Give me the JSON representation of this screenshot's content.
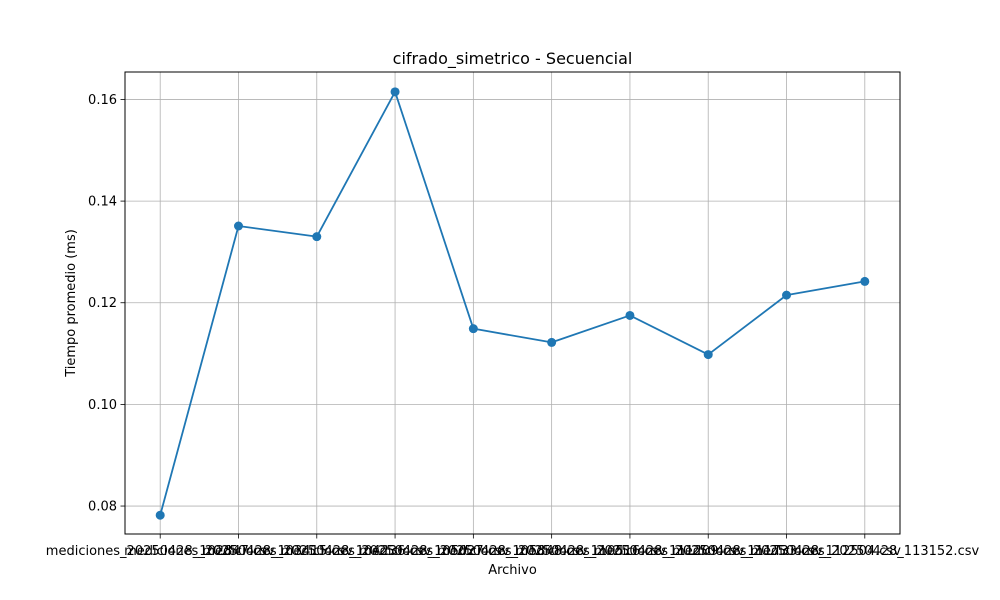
{
  "chart_data": {
    "type": "line",
    "title": "cifrado_simetrico - Secuencial",
    "xlabel": "Archivo",
    "ylabel": "Tiempo promedio (ms)",
    "categories": [
      "mediciones_20250428_102847.csv",
      "mediciones_20250428_103415.csv",
      "mediciones_20250428_104236.csv",
      "mediciones_20250428_105027.csv",
      "mediciones_20250428_105848.csv",
      "mediciones_20250428_110516.csv",
      "mediciones_20250428_111209.csv",
      "mediciones_20250428_111733.csv",
      "mediciones_20250428_112504.csv",
      "mediciones_20250428_113152.csv"
    ],
    "series": [
      {
        "values": [
          0.0782,
          0.1351,
          0.133,
          0.1615,
          0.1149,
          0.1122,
          0.1175,
          0.1098,
          0.1215,
          0.1242
        ]
      }
    ],
    "ylim": [
      0.0745,
      0.1654
    ],
    "yticks": [
      0.08,
      0.1,
      0.12,
      0.14,
      0.16
    ],
    "ytick_labels": [
      "0.08",
      "0.10",
      "0.12",
      "0.14",
      "0.16"
    ],
    "grid": true,
    "line_color": "#1f77b4",
    "marker": "circle"
  }
}
